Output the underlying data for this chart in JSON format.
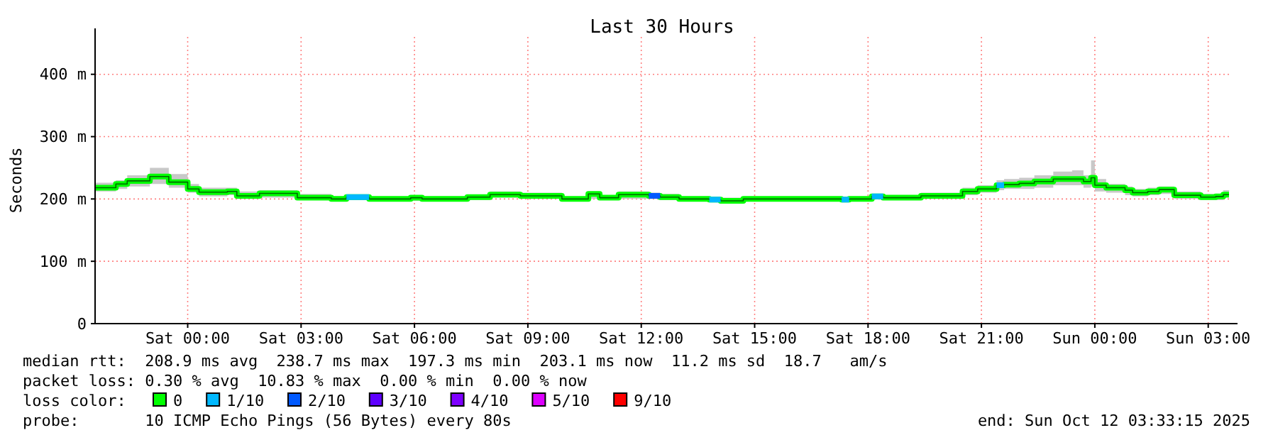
{
  "chart_data": {
    "type": "step",
    "title": "Last 30 Hours",
    "ylabel": "Seconds",
    "xlim": [
      "2025-10-10T21:33",
      "2025-10-12T03:33"
    ],
    "xticks": [
      {
        "value": "2025-10-11T00:00",
        "label": "Sat 00:00"
      },
      {
        "value": "2025-10-11T03:00",
        "label": "Sat 03:00"
      },
      {
        "value": "2025-10-11T06:00",
        "label": "Sat 06:00"
      },
      {
        "value": "2025-10-11T09:00",
        "label": "Sat 09:00"
      },
      {
        "value": "2025-10-11T12:00",
        "label": "Sat 12:00"
      },
      {
        "value": "2025-10-11T15:00",
        "label": "Sat 15:00"
      },
      {
        "value": "2025-10-11T18:00",
        "label": "Sat 18:00"
      },
      {
        "value": "2025-10-11T21:00",
        "label": "Sat 21:00"
      },
      {
        "value": "2025-10-12T00:00",
        "label": "Sun 00:00"
      },
      {
        "value": "2025-10-12T03:00",
        "label": "Sun 03:00"
      }
    ],
    "ylim": [
      0,
      460
    ],
    "yticks": [
      0,
      {
        "value": 100,
        "label": "100 m"
      },
      {
        "value": 200,
        "label": "200 m"
      },
      {
        "value": 300,
        "label": "300 m"
      },
      {
        "value": 400,
        "label": "400 m"
      }
    ],
    "grid": true,
    "legend": "bottom",
    "series": [
      {
        "name": "0",
        "color": "#00ff00",
        "x": [
          "2025-10-10T21:33",
          "2025-10-10T22:06",
          "2025-10-10T22:24",
          "2025-10-10T23:00",
          "2025-10-10T23:30",
          "2025-10-11T00:00",
          "2025-10-11T00:18",
          "2025-10-11T01:03",
          "2025-10-11T01:18",
          "2025-10-11T01:54",
          "2025-10-11T02:54",
          "2025-10-11T03:48",
          "2025-10-11T04:12",
          "2025-10-11T04:48",
          "2025-10-11T05:54",
          "2025-10-11T06:12",
          "2025-10-11T07:24",
          "2025-10-11T08:00",
          "2025-10-11T08:48",
          "2025-10-11T09:54",
          "2025-10-11T10:36",
          "2025-10-11T10:54",
          "2025-10-11T11:24",
          "2025-10-11T12:12",
          "2025-10-11T12:30",
          "2025-10-11T13:00",
          "2025-10-11T13:48",
          "2025-10-11T14:06",
          "2025-10-11T14:42",
          "2025-10-11T17:18",
          "2025-10-11T17:30",
          "2025-10-11T18:06",
          "2025-10-11T18:24",
          "2025-10-11T19:24",
          "2025-10-11T20:30",
          "2025-10-11T20:54",
          "2025-10-11T21:24",
          "2025-10-11T21:36",
          "2025-10-11T22:00",
          "2025-10-11T22:24",
          "2025-10-11T22:54",
          "2025-10-11T23:24",
          "2025-10-11T23:42",
          "2025-10-11T23:54",
          "2025-10-12T00:00",
          "2025-10-12T00:18",
          "2025-10-12T00:48",
          "2025-10-12T01:00",
          "2025-10-12T01:24",
          "2025-10-12T01:42",
          "2025-10-12T02:06",
          "2025-10-12T02:48",
          "2025-10-12T03:12",
          "2025-10-12T03:24",
          "2025-10-12T03:33"
        ],
        "values": [
          218,
          224,
          229,
          236,
          227,
          216,
          211,
          212,
          205,
          209,
          202,
          200,
          203,
          200,
          202,
          200,
          203,
          207,
          205,
          200,
          208,
          202,
          207,
          205,
          203,
          200,
          199,
          197,
          200,
          199,
          200,
          204,
          202,
          205,
          212,
          216,
          222,
          223,
          225,
          228,
          232,
          232,
          228,
          234,
          222,
          218,
          214,
          210,
          212,
          215,
          206,
          203,
          204,
          207,
          207
        ],
        "lower": [
          212,
          216,
          220,
          224,
          218,
          210,
          204,
          206,
          200,
          202,
          198,
          196,
          198,
          196,
          197,
          196,
          198,
          202,
          200,
          196,
          200,
          198,
          200,
          200,
          198,
          196,
          195,
          194,
          196,
          195,
          196,
          200,
          198,
          200,
          206,
          210,
          214,
          216,
          216,
          218,
          222,
          222,
          218,
          220,
          212,
          210,
          206,
          204,
          206,
          208,
          200,
          198,
          198,
          202,
          202
        ],
        "upper": [
          226,
          230,
          238,
          250,
          240,
          224,
          218,
          218,
          212,
          214,
          208,
          204,
          206,
          204,
          205,
          204,
          207,
          212,
          210,
          204,
          212,
          206,
          212,
          210,
          208,
          204,
          203,
          202,
          204,
          203,
          204,
          208,
          206,
          210,
          218,
          222,
          230,
          232,
          234,
          238,
          244,
          246,
          238,
          262,
          232,
          224,
          220,
          216,
          218,
          220,
          212,
          208,
          208,
          214,
          214
        ]
      },
      {
        "name": "1/10",
        "color": "#00b8ff",
        "x": [
          "2025-10-11T04:12",
          "2025-10-11T04:48",
          "2025-10-11T13:48",
          "2025-10-11T14:06",
          "2025-10-11T17:18",
          "2025-10-11T17:30",
          "2025-10-11T18:06",
          "2025-10-11T18:24",
          "2025-10-11T21:24",
          "2025-10-11T21:36"
        ],
        "values": [
          203,
          203,
          199,
          199,
          199,
          199,
          204,
          204,
          222,
          222
        ]
      },
      {
        "name": "2/10",
        "color": "#0059ff",
        "x": [
          "2025-10-11T12:12",
          "2025-10-11T12:30"
        ],
        "values": [
          205,
          205
        ]
      },
      {
        "name": "3/10",
        "color": "#5e00ff"
      },
      {
        "name": "4/10",
        "color": "#7e00ff"
      },
      {
        "name": "5/10",
        "color": "#dd00ff"
      },
      {
        "name": "9/10",
        "color": "#ff0000"
      }
    ],
    "annotations": [
      "median rtt:  208.9 ms avg  238.7 ms max  197.3 ms min  203.1 ms now  11.2 ms sd  18.7   am/s",
      "packet loss: 0.30 % avg  10.83 % max  0.00 % min  0.00 % now",
      "loss color:",
      "probe:       10 ICMP Echo Pings (56 Bytes) every 80s",
      "end: Sun Oct 12 03:33:15 2025"
    ]
  }
}
